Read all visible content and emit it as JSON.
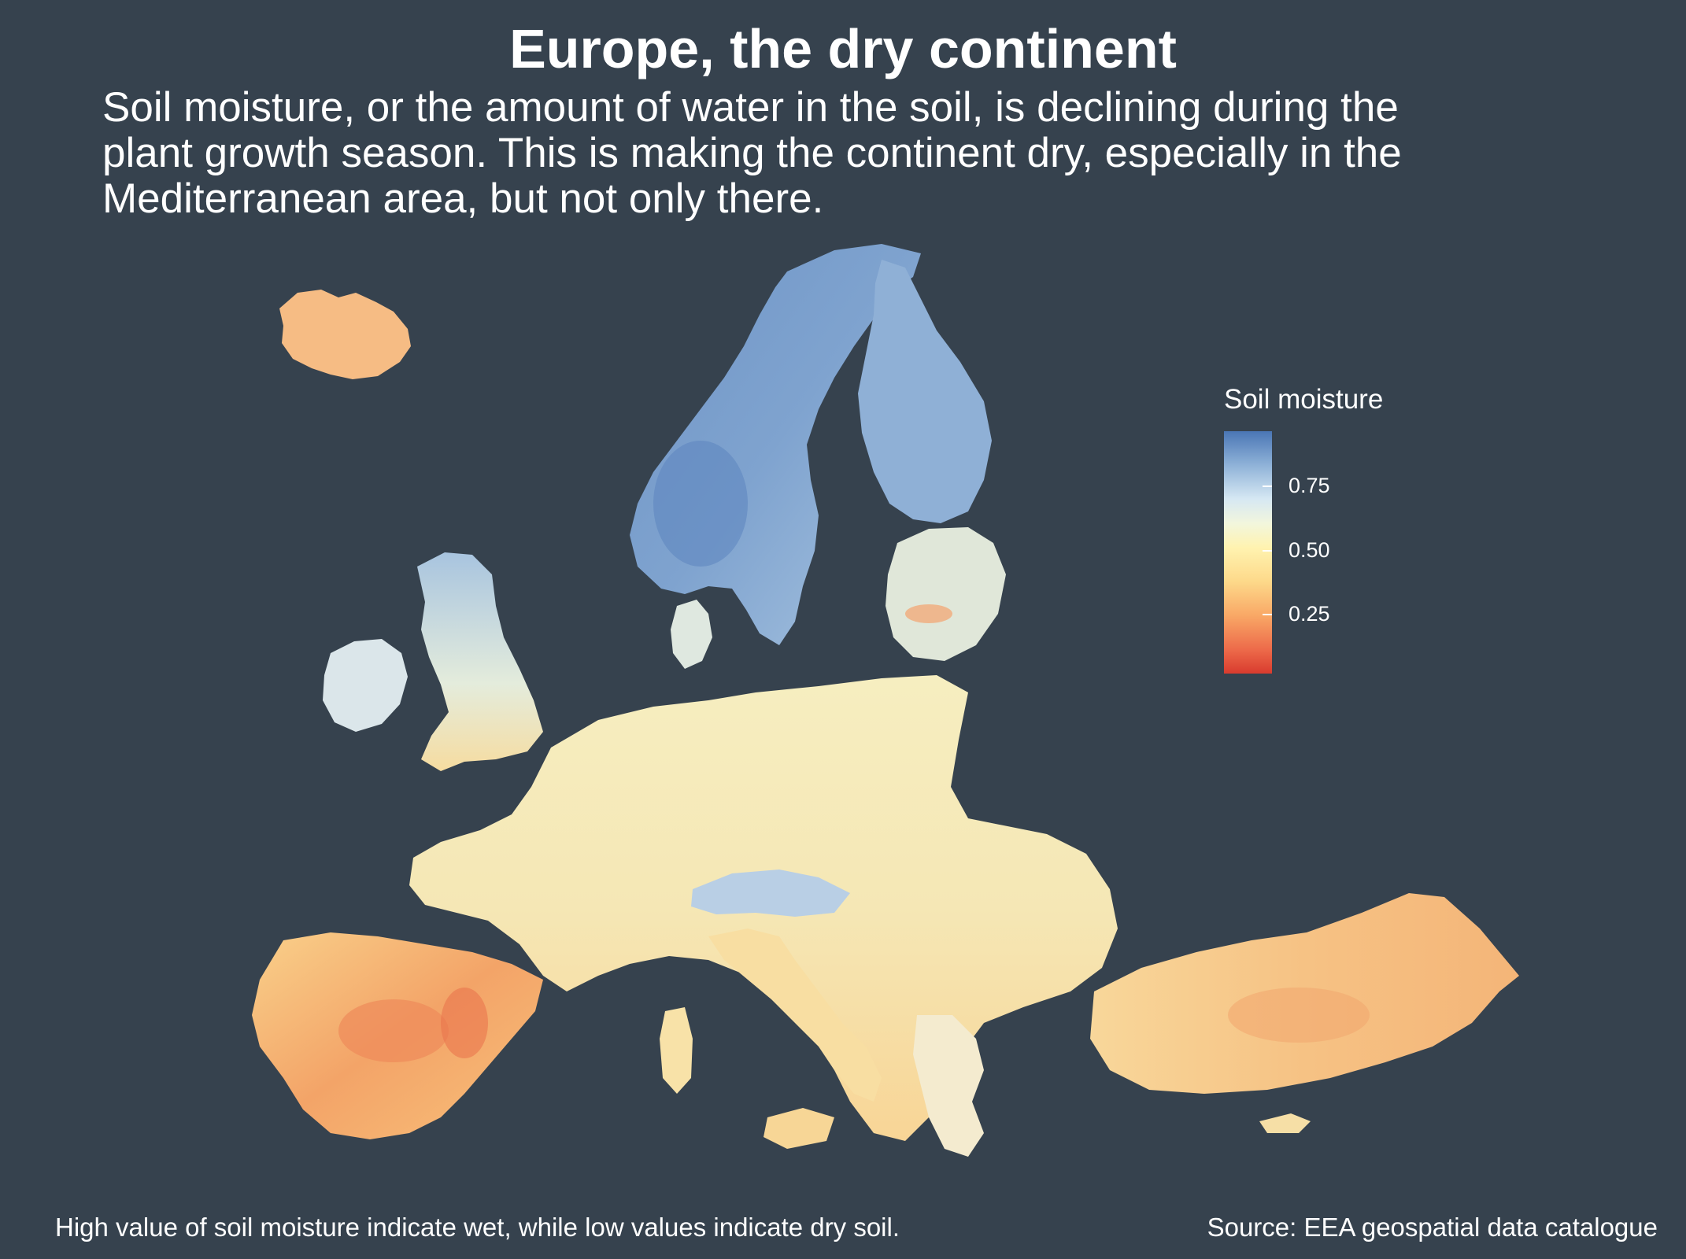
{
  "title": "Europe, the dry continent",
  "subtitle": [
    "Soil moisture, or the amount of water in the soil, is declining during the",
    "plant growth season. This is making the continent dry, especially in the",
    "Mediterranean area, but not only there."
  ],
  "legend": {
    "title": "Soil moisture",
    "ticks": [
      {
        "label": "0.75",
        "value": 0.75
      },
      {
        "label": "0.50",
        "value": 0.5
      },
      {
        "label": "0.25",
        "value": 0.25
      }
    ],
    "range": [
      0.02,
      0.96
    ],
    "colors": {
      "wet": "#4a76b5",
      "moist": "#d6e8f3",
      "mid": "#fff3b0",
      "dry": "#f9a866",
      "very_dry": "#d93b2e"
    }
  },
  "caption_left": "High value of soil moisture indicate wet, while low values indicate dry soil.",
  "caption_right": "Source: EEA geospatial data catalogue",
  "background_color": "#36424e"
}
